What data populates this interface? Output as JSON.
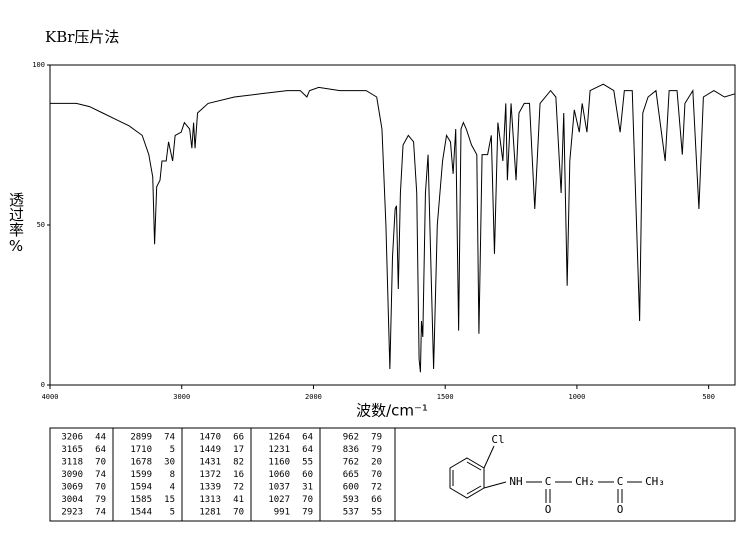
{
  "chart_data": {
    "type": "line",
    "title": "KBr压片法",
    "x_label": "波数/cm⁻¹",
    "y_label": "透过率%",
    "xlim": [
      4000,
      400
    ],
    "xticks": [
      4000,
      3000,
      2000,
      1500,
      1000,
      500
    ],
    "ylim": [
      0,
      100
    ],
    "yticks": [
      0,
      50,
      100
    ],
    "grid": false,
    "series": [
      {
        "color": "#000000",
        "x": [
          4000,
          3800,
          3700,
          3600,
          3500,
          3400,
          3300,
          3250,
          3220,
          3206,
          3190,
          3165,
          3150,
          3118,
          3100,
          3090,
          3069,
          3050,
          3004,
          2980,
          2940,
          2923,
          2910,
          2899,
          2880,
          2800,
          2600,
          2400,
          2200,
          2100,
          2050,
          2030,
          1980,
          1900,
          1800,
          1760,
          1740,
          1725,
          1710,
          1700,
          1690,
          1685,
          1678,
          1670,
          1660,
          1640,
          1620,
          1608,
          1599,
          1594,
          1590,
          1585,
          1575,
          1565,
          1555,
          1544,
          1530,
          1510,
          1495,
          1480,
          1470,
          1460,
          1449,
          1440,
          1431,
          1420,
          1400,
          1380,
          1372,
          1360,
          1339,
          1325,
          1313,
          1300,
          1281,
          1270,
          1264,
          1250,
          1231,
          1220,
          1200,
          1180,
          1160,
          1140,
          1100,
          1080,
          1060,
          1050,
          1037,
          1027,
          1010,
          991,
          980,
          962,
          950,
          900,
          860,
          836,
          820,
          790,
          762,
          750,
          730,
          700,
          665,
          650,
          620,
          600,
          590,
          575,
          560,
          537,
          520,
          480,
          440,
          400
        ],
        "values": [
          88,
          88,
          87,
          85,
          83,
          81,
          78,
          72,
          65,
          44,
          62,
          64,
          70,
          70,
          76,
          74,
          70,
          78,
          79,
          82,
          80,
          74,
          82,
          74,
          85,
          88,
          90,
          91,
          92,
          92,
          90,
          92,
          93,
          92,
          92,
          90,
          80,
          50,
          5,
          40,
          55,
          56,
          30,
          60,
          75,
          78,
          76,
          60,
          8,
          4,
          20,
          15,
          60,
          72,
          40,
          5,
          50,
          70,
          78,
          76,
          66,
          80,
          17,
          80,
          82,
          80,
          75,
          72,
          16,
          72,
          72,
          78,
          41,
          82,
          70,
          88,
          64,
          88,
          64,
          85,
          88,
          88,
          55,
          88,
          92,
          90,
          60,
          85,
          31,
          70,
          86,
          79,
          88,
          79,
          92,
          94,
          92,
          79,
          92,
          92,
          20,
          85,
          90,
          92,
          70,
          92,
          92,
          72,
          88,
          90,
          92,
          55,
          90,
          92,
          90,
          91
        ]
      }
    ]
  },
  "peak_table": {
    "columns": [
      [
        [
          3206,
          44
        ],
        [
          3165,
          64
        ],
        [
          3118,
          70
        ],
        [
          3090,
          74
        ],
        [
          3069,
          70
        ],
        [
          3004,
          79
        ],
        [
          2923,
          74
        ]
      ],
      [
        [
          2899,
          74
        ],
        [
          1710,
          5
        ],
        [
          1678,
          30
        ],
        [
          1599,
          8
        ],
        [
          1594,
          4
        ],
        [
          1585,
          15
        ],
        [
          1544,
          5
        ]
      ],
      [
        [
          1470,
          66
        ],
        [
          1449,
          17
        ],
        [
          1431,
          82
        ],
        [
          1372,
          16
        ],
        [
          1339,
          72
        ],
        [
          1313,
          41
        ],
        [
          1281,
          70
        ]
      ],
      [
        [
          1264,
          64
        ],
        [
          1231,
          64
        ],
        [
          1160,
          55
        ],
        [
          1060,
          60
        ],
        [
          1037,
          31
        ],
        [
          1027,
          70
        ],
        [
          991,
          79
        ]
      ],
      [
        [
          962,
          79
        ],
        [
          836,
          79
        ],
        [
          762,
          20
        ],
        [
          665,
          70
        ],
        [
          600,
          72
        ],
        [
          593,
          66
        ],
        [
          537,
          55
        ]
      ]
    ]
  },
  "structure": {
    "labels": [
      "Cl",
      "NH",
      "C",
      "CH₂",
      "C",
      "CH₃",
      "O",
      "O"
    ]
  }
}
